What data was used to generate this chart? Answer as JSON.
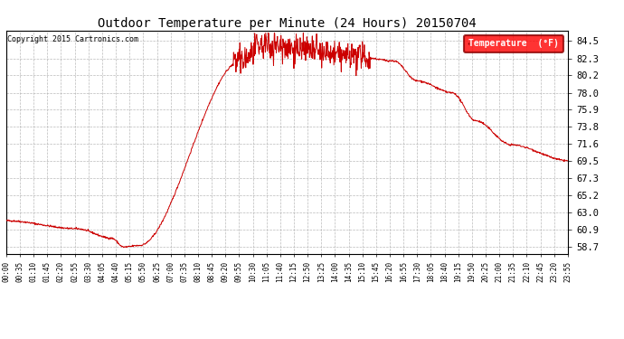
{
  "title": "Outdoor Temperature per Minute (24 Hours) 20150704",
  "copyright_text": "Copyright 2015 Cartronics.com",
  "legend_label": "Temperature  (°F)",
  "line_color": "#cc0000",
  "background_color": "#ffffff",
  "grid_color": "#aaaaaa",
  "yticks": [
    58.7,
    60.9,
    63.0,
    65.2,
    67.3,
    69.5,
    71.6,
    73.8,
    75.9,
    78.0,
    80.2,
    82.3,
    84.5
  ],
  "ylim": [
    57.8,
    85.8
  ],
  "total_minutes": 1436,
  "xtick_interval": 35
}
